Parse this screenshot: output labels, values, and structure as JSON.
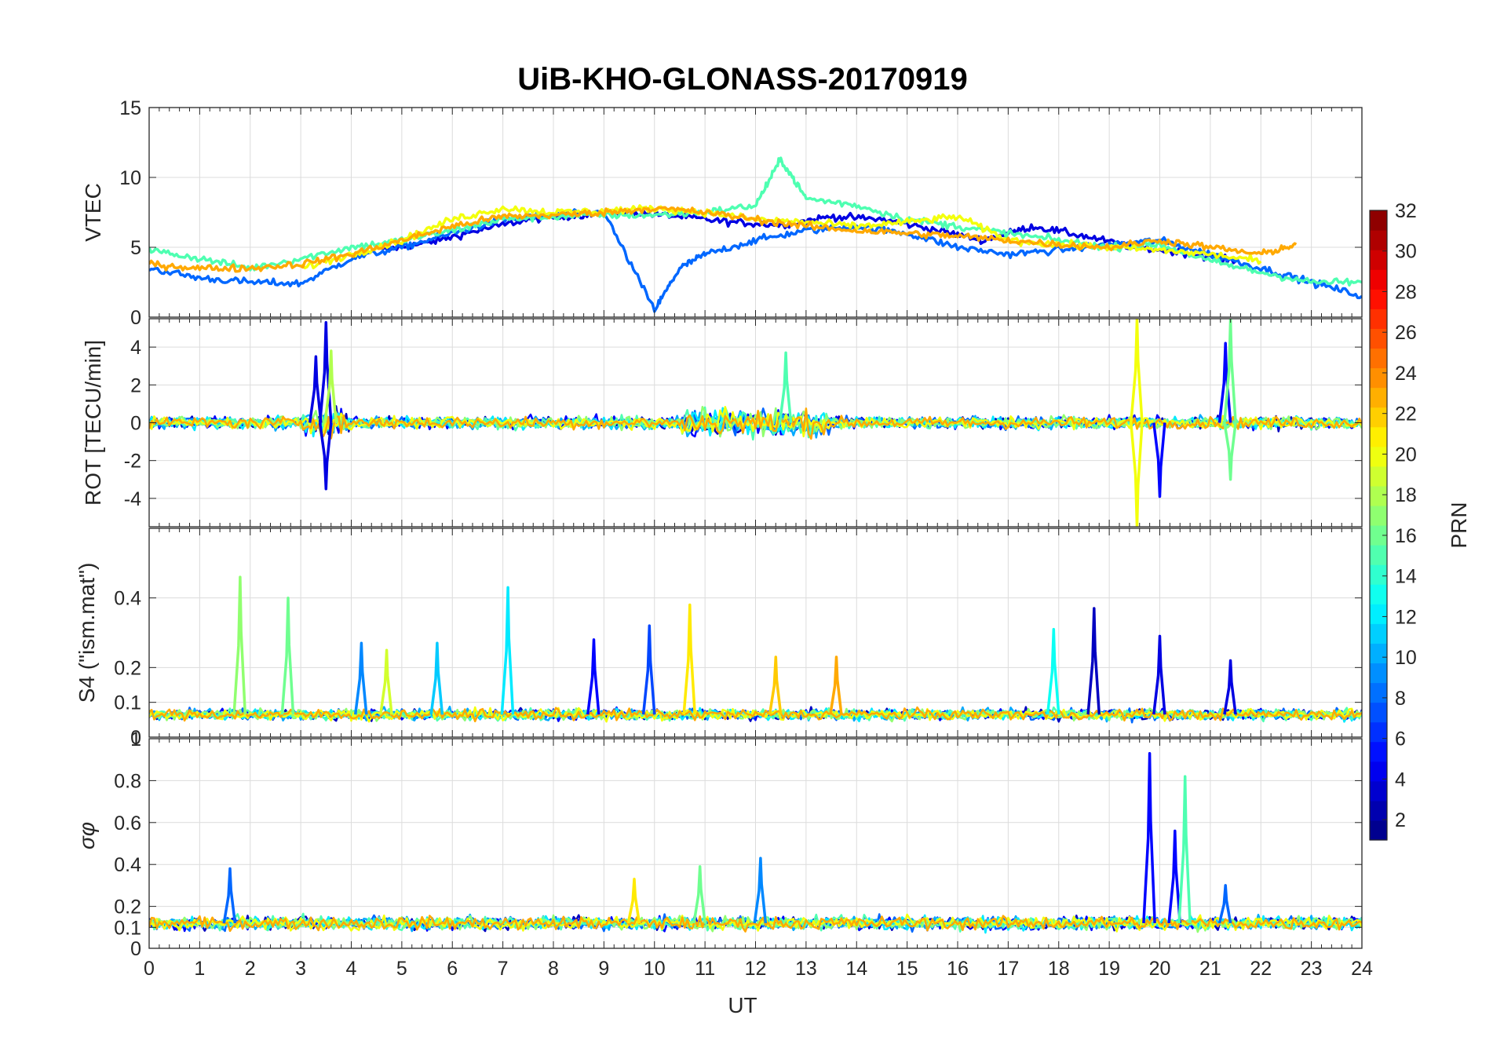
{
  "chart_data": {
    "type": "line",
    "title": "UiB-KHO-GLONASS-20170919",
    "xlabel": "UT",
    "xlim": [
      0,
      24
    ],
    "x_ticks": [
      "0",
      "1",
      "2",
      "3",
      "4",
      "5",
      "6",
      "7",
      "8",
      "9",
      "10",
      "11",
      "12",
      "13",
      "14",
      "15",
      "16",
      "17",
      "18",
      "19",
      "20",
      "21",
      "22",
      "23",
      "24"
    ],
    "color_by": "PRN",
    "panels": [
      {
        "id": "vtec",
        "ylabel": "VTEC",
        "ylim": [
          0,
          15
        ],
        "y_ticks": [
          "0",
          "5",
          "10",
          "15"
        ],
        "grid": true,
        "approx_curves": [
          {
            "prn": 4,
            "x": [
              4.6,
              5.5,
              6.5,
              7.5,
              8.5,
              9.5,
              10.5,
              11.5,
              12.5,
              13.5,
              14.5,
              15.5,
              16.5,
              17.5,
              18.5,
              19.5,
              20.5,
              21.5
            ],
            "y": [
              4.8,
              5.3,
              6.2,
              7.0,
              7.3,
              7.5,
              7.2,
              6.8,
              6.6,
              7.2,
              7.0,
              6.3,
              5.5,
              6.5,
              5.8,
              5.0,
              4.6,
              4.0
            ]
          },
          {
            "prn": 8,
            "x": [
              0.0,
              1.0,
              2.0,
              3.0,
              4.0,
              5.0,
              6.0,
              7.0,
              8.0,
              9.0,
              10.0,
              10.5,
              11.0,
              12.0,
              13.0,
              14.0,
              15.0,
              16.0,
              17.0,
              18.0,
              19.0,
              20.0,
              21.0,
              22.0,
              23.0,
              24.0
            ],
            "y": [
              3.5,
              2.8,
              2.5,
              2.4,
              4.2,
              5.0,
              6.0,
              7.0,
              7.3,
              7.5,
              0.5,
              3.5,
              4.5,
              5.5,
              6.2,
              6.5,
              6.0,
              5.0,
              4.5,
              4.8,
              5.2,
              5.5,
              4.5,
              3.5,
              2.5,
              1.5
            ]
          },
          {
            "prn": 15,
            "x": [
              0.0,
              1.0,
              2.0,
              3.0,
              4.0,
              5.0,
              6.0,
              7.0,
              8.0,
              9.0,
              10.0,
              11.0,
              12.0,
              12.5,
              13.0,
              14.0,
              15.0,
              16.0,
              17.0,
              18.0,
              19.0,
              20.0,
              21.0,
              22.0,
              23.0,
              24.0
            ],
            "y": [
              4.8,
              4.2,
              3.5,
              4.2,
              5.0,
              5.5,
              6.2,
              7.0,
              7.2,
              7.3,
              7.3,
              7.5,
              8.0,
              11.3,
              8.5,
              8.0,
              7.0,
              6.5,
              6.0,
              5.5,
              5.0,
              5.2,
              4.0,
              3.2,
              2.5,
              2.5
            ]
          },
          {
            "prn": 20,
            "x": [
              3.0,
              4.0,
              5.0,
              6.0,
              7.0,
              8.0,
              9.0,
              10.0,
              11.0,
              12.0,
              13.0,
              14.0,
              15.0,
              16.0,
              17.0,
              18.0,
              19.0,
              20.0,
              21.0,
              22.0
            ],
            "y": [
              3.5,
              4.5,
              5.5,
              7.0,
              7.8,
              7.5,
              7.6,
              7.8,
              7.5,
              7.0,
              6.8,
              6.5,
              6.8,
              7.2,
              5.5,
              5.2,
              5.0,
              4.8,
              4.5,
              4.0
            ]
          },
          {
            "prn": 23,
            "x": [
              0.0,
              1.0,
              2.0,
              3.0,
              4.0,
              5.0,
              6.0,
              7.0,
              8.0,
              9.0,
              10.0,
              11.0,
              12.0,
              13.0,
              14.0,
              15.0,
              16.0,
              17.0,
              18.0,
              19.0,
              20.0,
              21.0,
              22.0,
              22.7
            ],
            "y": [
              3.8,
              3.5,
              3.5,
              3.8,
              4.5,
              5.5,
              6.5,
              7.2,
              7.3,
              7.5,
              7.8,
              7.5,
              7.0,
              6.5,
              6.2,
              6.0,
              5.8,
              5.5,
              5.2,
              5.0,
              5.5,
              5.0,
              4.5,
              5.2
            ]
          }
        ]
      },
      {
        "id": "rot",
        "ylabel": "ROT [TECU/min]",
        "ylim": [
          -5.5,
          5.5
        ],
        "y_ticks": [
          "-4",
          "-2",
          "0",
          "2",
          "4"
        ],
        "grid": true,
        "approx_spikes": [
          {
            "prn": 4,
            "x": 3.5,
            "y": 5.3
          },
          {
            "prn": 4,
            "x": 3.5,
            "y": -3.5
          },
          {
            "prn": 4,
            "x": 3.3,
            "y": 3.5
          },
          {
            "prn": 18,
            "x": 3.6,
            "y": 3.8
          },
          {
            "prn": 15,
            "x": 12.6,
            "y": 3.7
          },
          {
            "prn": 20,
            "x": 19.55,
            "y": 5.5
          },
          {
            "prn": 20,
            "x": 19.55,
            "y": -5.5
          },
          {
            "prn": 5,
            "x": 20.0,
            "y": -3.9
          },
          {
            "prn": 5,
            "x": 21.3,
            "y": 4.2
          },
          {
            "prn": 16,
            "x": 21.4,
            "y": 5.5
          },
          {
            "prn": 16,
            "x": 21.4,
            "y": -3.0
          }
        ]
      },
      {
        "id": "s4",
        "ylabel": "S4 (\"ism.mat\")",
        "ylim": [
          0,
          0.6
        ],
        "y_ticks": [
          "0",
          "0.1",
          "0.2",
          "0.4"
        ],
        "grid": true,
        "approx_spikes": [
          {
            "prn": 17,
            "x": 1.8,
            "y": 0.46
          },
          {
            "prn": 16,
            "x": 2.75,
            "y": 0.4
          },
          {
            "prn": 9,
            "x": 4.2,
            "y": 0.27
          },
          {
            "prn": 19,
            "x": 4.7,
            "y": 0.25
          },
          {
            "prn": 11,
            "x": 5.7,
            "y": 0.27
          },
          {
            "prn": 12,
            "x": 7.1,
            "y": 0.43
          },
          {
            "prn": 5,
            "x": 8.8,
            "y": 0.28
          },
          {
            "prn": 7,
            "x": 9.9,
            "y": 0.32
          },
          {
            "prn": 21,
            "x": 10.7,
            "y": 0.38
          },
          {
            "prn": 22,
            "x": 12.4,
            "y": 0.23
          },
          {
            "prn": 23,
            "x": 13.6,
            "y": 0.23
          },
          {
            "prn": 13,
            "x": 17.9,
            "y": 0.31
          },
          {
            "prn": 3,
            "x": 18.7,
            "y": 0.37
          },
          {
            "prn": 4,
            "x": 20.0,
            "y": 0.29
          },
          {
            "prn": 4,
            "x": 21.4,
            "y": 0.22
          }
        ]
      },
      {
        "id": "sigma_phi",
        "ylabel": "σφ",
        "ylim": [
          0,
          1
        ],
        "y_ticks": [
          "0",
          "0.1",
          "0.2",
          "0.4",
          "0.6",
          "0.8",
          "1"
        ],
        "grid": true,
        "approx_spikes": [
          {
            "prn": 8,
            "x": 1.6,
            "y": 0.38
          },
          {
            "prn": 21,
            "x": 9.6,
            "y": 0.33
          },
          {
            "prn": 16,
            "x": 10.9,
            "y": 0.39
          },
          {
            "prn": 9,
            "x": 12.1,
            "y": 0.43
          },
          {
            "prn": 5,
            "x": 19.8,
            "y": 0.93
          },
          {
            "prn": 5,
            "x": 20.3,
            "y": 0.56
          },
          {
            "prn": 15,
            "x": 20.5,
            "y": 0.82
          },
          {
            "prn": 8,
            "x": 21.3,
            "y": 0.3
          }
        ]
      }
    ],
    "colorbar": {
      "label": "PRN",
      "range": [
        1,
        32
      ],
      "ticks": [
        "2",
        "4",
        "6",
        "8",
        "10",
        "12",
        "14",
        "16",
        "18",
        "20",
        "22",
        "24",
        "26",
        "28",
        "30",
        "32"
      ],
      "colormap": "jet"
    }
  }
}
